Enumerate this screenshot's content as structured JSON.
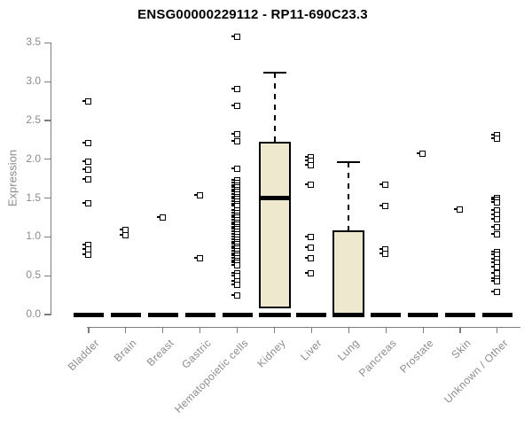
{
  "chart_data": {
    "type": "boxplot",
    "title": "ENSG00000229112 - RP11-690C23.3",
    "ylabel": "Expression",
    "xlabel": "",
    "ylim": [
      0,
      3.5
    ],
    "yticks": [
      0,
      0.5,
      1,
      1.5,
      2,
      2.5,
      3,
      3.5
    ],
    "grid": "off",
    "legend": "none",
    "categories": [
      "Bladder",
      "Brain",
      "Breast",
      "Gastric",
      "Hematopoietic cells",
      "Kidney",
      "Liver",
      "Lung",
      "Pancreas",
      "Prostate",
      "Skin",
      "Unknown / Other"
    ],
    "colors": {
      "box_fill": "#EDE8CE",
      "box_border": "#000000",
      "outlier": "#000000",
      "axis": "#7D7D7D",
      "tick_label": "#8B8B8B",
      "title_color": "#000000"
    },
    "boxes": [
      {
        "category": "Bladder",
        "q1": 0,
        "median": 0,
        "q3": 0,
        "whisker_low": 0,
        "whisker_high": 0,
        "outliers": [
          2.74,
          2.2,
          1.96,
          1.86,
          1.73,
          1.43,
          0.89,
          0.83,
          0.77
        ]
      },
      {
        "category": "Brain",
        "q1": 0,
        "median": 0,
        "q3": 0,
        "whisker_low": 0,
        "whisker_high": 0,
        "outliers": [
          1.08,
          1.02
        ]
      },
      {
        "category": "Breast",
        "q1": 0,
        "median": 0,
        "q3": 0,
        "whisker_low": 0,
        "whisker_high": 0,
        "outliers": [
          1.24
        ]
      },
      {
        "category": "Gastric",
        "q1": 0,
        "median": 0,
        "q3": 0,
        "whisker_low": 0,
        "whisker_high": 0,
        "outliers": [
          1.53,
          0.72
        ]
      },
      {
        "category": "Hematopoietic cells",
        "q1": 0,
        "median": 0,
        "q3": 0,
        "whisker_low": 0,
        "whisker_high": 0,
        "outliers": [
          3.57,
          2.9,
          2.68,
          2.32,
          2.23,
          1.87,
          1.72,
          1.69,
          1.66,
          1.63,
          1.6,
          1.57,
          1.54,
          1.51,
          1.48,
          1.45,
          1.42,
          1.39,
          1.33,
          1.3,
          1.27,
          1.24,
          1.21,
          1.18,
          1.15,
          1.12,
          1.09,
          1.06,
          1.03,
          0.99,
          0.96,
          0.93,
          0.9,
          0.87,
          0.84,
          0.81,
          0.78,
          0.75,
          0.72,
          0.69,
          0.66,
          0.63,
          0.53,
          0.49,
          0.42,
          0.38,
          0.24
        ]
      },
      {
        "category": "Kidney",
        "q1": 0.08,
        "median": 1.5,
        "q3": 2.22,
        "whisker_low": 0,
        "whisker_high": 3.12,
        "outliers": []
      },
      {
        "category": "Liver",
        "q1": 0,
        "median": 0,
        "q3": 0,
        "whisker_low": 0,
        "whisker_high": 0,
        "outliers": [
          2.02,
          1.97,
          1.92,
          1.67,
          0.99,
          0.86,
          0.72,
          0.53
        ]
      },
      {
        "category": "Lung",
        "q1": 0,
        "median": 0,
        "q3": 1.08,
        "whisker_low": 0,
        "whisker_high": 1.96,
        "outliers": []
      },
      {
        "category": "Pancreas",
        "q1": 0,
        "median": 0,
        "q3": 0,
        "whisker_low": 0,
        "whisker_high": 0,
        "outliers": [
          1.67,
          1.39,
          0.83,
          0.78
        ]
      },
      {
        "category": "Prostate",
        "q1": 0,
        "median": 0,
        "q3": 0,
        "whisker_low": 0,
        "whisker_high": 0,
        "outliers": [
          2.07
        ]
      },
      {
        "category": "Skin",
        "q1": 0,
        "median": 0,
        "q3": 0,
        "whisker_low": 0,
        "whisker_high": 0,
        "outliers": [
          1.35
        ]
      },
      {
        "category": "Unknown / Other",
        "q1": 0,
        "median": 0,
        "q3": 0,
        "whisker_low": 0,
        "whisker_high": 0,
        "outliers": [
          2.31,
          2.26,
          1.5,
          1.47,
          1.44,
          1.34,
          1.28,
          1.22,
          1.12,
          1.03,
          0.8,
          0.76,
          0.71,
          0.66,
          0.61,
          0.53,
          0.46,
          0.42,
          0.28
        ]
      }
    ]
  }
}
